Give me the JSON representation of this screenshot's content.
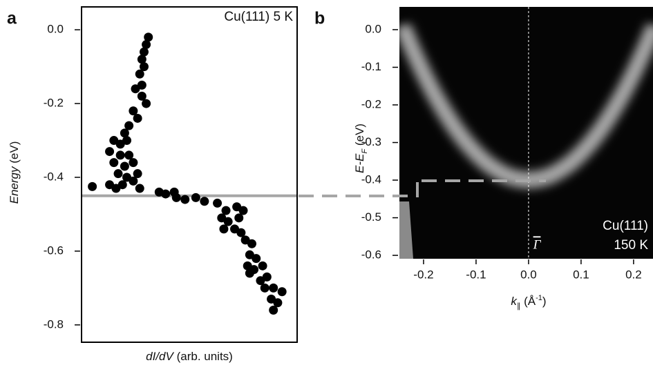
{
  "chart_data": [
    {
      "type": "scatter",
      "panel": "a",
      "annotation": "Cu(111) 5 K",
      "xlabel": [
        "dI/dV",
        " (arb. units)"
      ],
      "ylabel": [
        "Energy",
        " (eV)"
      ],
      "xlim": [
        0,
        1
      ],
      "ylim": [
        -0.847,
        0.062
      ],
      "yticks": [
        {
          "value": 0,
          "label": "0.0"
        },
        -0.2,
        -0.4,
        -0.6,
        -0.8
      ],
      "color": "#000000",
      "reference_energy": -0.45,
      "reference_color": "#a6a6a6",
      "x": [
        0.31,
        0.3,
        0.29,
        0.28,
        0.29,
        0.27,
        0.28,
        0.25,
        0.28,
        0.3,
        0.24,
        0.26,
        0.22,
        0.2,
        0.15,
        0.18,
        0.21,
        0.13,
        0.18,
        0.22,
        0.15,
        0.2,
        0.24,
        0.17,
        0.21,
        0.26,
        0.13,
        0.19,
        0.24,
        0.05,
        0.16,
        0.27,
        0.36,
        0.39,
        0.43,
        0.44,
        0.48,
        0.53,
        0.57,
        0.63,
        0.67,
        0.72,
        0.75,
        0.65,
        0.68,
        0.73,
        0.66,
        0.71,
        0.74,
        0.76,
        0.79,
        0.78,
        0.81,
        0.77,
        0.8,
        0.84,
        0.78,
        0.83,
        0.86,
        0.85,
        0.89,
        0.93,
        0.88,
        0.91,
        0.89
      ],
      "values": [
        -0.02,
        -0.04,
        -0.06,
        -0.08,
        -0.1,
        -0.12,
        -0.15,
        -0.16,
        -0.18,
        -0.2,
        -0.22,
        -0.24,
        -0.26,
        -0.28,
        -0.3,
        -0.31,
        -0.3,
        -0.33,
        -0.34,
        -0.34,
        -0.36,
        -0.37,
        -0.36,
        -0.39,
        -0.4,
        -0.39,
        -0.42,
        -0.42,
        -0.41,
        -0.425,
        -0.43,
        -0.43,
        -0.44,
        -0.445,
        -0.44,
        -0.455,
        -0.46,
        -0.455,
        -0.465,
        -0.47,
        -0.49,
        -0.48,
        -0.49,
        -0.51,
        -0.52,
        -0.51,
        -0.54,
        -0.54,
        -0.55,
        -0.57,
        -0.58,
        -0.61,
        -0.62,
        -0.64,
        -0.65,
        -0.64,
        -0.66,
        -0.68,
        -0.67,
        -0.7,
        -0.7,
        -0.71,
        -0.73,
        -0.74,
        -0.76
      ]
    },
    {
      "type": "image",
      "panel": "b",
      "annotation": [
        "Cu(111)",
        "150 K"
      ],
      "point_label": "Γ",
      "xlabel": [
        "k",
        "∥",
        " (Å",
        "-1",
        ")"
      ],
      "ylabel": [
        "E-E",
        "F",
        " (eV)"
      ],
      "xlim": [
        -0.246,
        0.237
      ],
      "ylim": [
        -0.609,
        0.0605
      ],
      "xticks": [
        -0.2,
        -0.1,
        {
          "value": 0,
          "label": "0.0"
        },
        0.1,
        0.2
      ],
      "yticks": [
        {
          "value": 0,
          "label": "0.0"
        },
        -0.1,
        -0.2,
        -0.3,
        -0.4,
        -0.5,
        -0.6
      ],
      "color": "#e6e6e6",
      "x": [
        -0.24,
        -0.22,
        -0.2,
        -0.18,
        -0.16,
        -0.14,
        -0.12,
        -0.1,
        -0.08,
        -0.06,
        -0.04,
        -0.02,
        0,
        0.02,
        0.04,
        0.06,
        0.08,
        0.1,
        0.12,
        0.14,
        0.16,
        0.18,
        0.2,
        0.22,
        0.24
      ],
      "values": [
        0.009,
        -0.056,
        -0.116,
        -0.17,
        -0.218,
        -0.261,
        -0.298,
        -0.329,
        -0.355,
        -0.374,
        -0.389,
        -0.397,
        -0.4,
        -0.397,
        -0.389,
        -0.374,
        -0.355,
        -0.329,
        -0.298,
        -0.261,
        -0.218,
        -0.17,
        -0.116,
        -0.056,
        0.009
      ]
    }
  ]
}
